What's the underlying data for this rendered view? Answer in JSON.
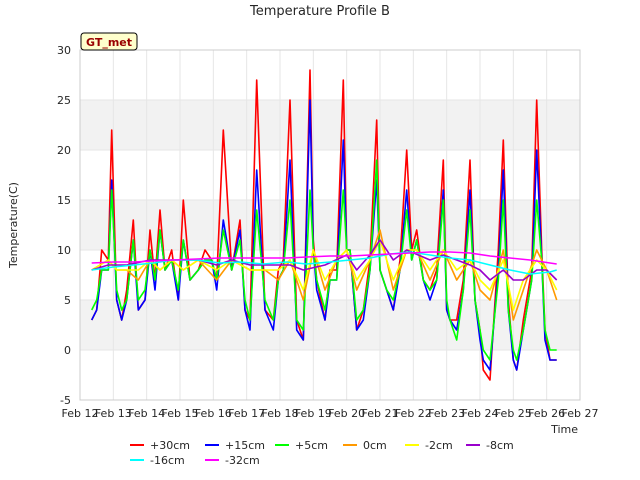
{
  "chart_data": {
    "type": "line",
    "title": "Temperature Profile B",
    "xlabel": "Time",
    "ylabel": "Temperature(C)",
    "annotation": "GT_met",
    "xlim": [
      12,
      27
    ],
    "ylim": [
      -5,
      30
    ],
    "x_ticks": [
      12,
      13,
      14,
      15,
      16,
      17,
      18,
      19,
      20,
      21,
      22,
      23,
      24,
      25,
      26,
      27
    ],
    "x_tick_labels": [
      "Feb 12",
      "Feb 13",
      "Feb 14",
      "Feb 15",
      "Feb 16",
      "Feb 17",
      "Feb 18",
      "Feb 19",
      "Feb 20",
      "Feb 21",
      "Feb 22",
      "Feb 23",
      "Feb 24",
      "Feb 25",
      "Feb 26",
      "Feb 27"
    ],
    "y_ticks": [
      -5,
      0,
      5,
      10,
      15,
      20,
      25,
      30
    ],
    "grid": true,
    "legend_placement": "bottom",
    "series": [
      {
        "name": "+30cm",
        "color": "#ff0000",
        "x": [
          12.35,
          12.5,
          12.65,
          12.85,
          12.95,
          13.1,
          13.25,
          13.4,
          13.6,
          13.75,
          13.95,
          14.1,
          14.25,
          14.4,
          14.55,
          14.75,
          14.95,
          15.1,
          15.3,
          15.55,
          15.75,
          15.95,
          16.1,
          16.3,
          16.55,
          16.8,
          16.95,
          17.1,
          17.3,
          17.55,
          17.8,
          17.95,
          18.1,
          18.3,
          18.5,
          18.7,
          18.9,
          19.0,
          19.1,
          19.35,
          19.5,
          19.7,
          19.9,
          20.0,
          20.1,
          20.3,
          20.5,
          20.7,
          20.9,
          21.0,
          21.2,
          21.4,
          21.6,
          21.8,
          21.95,
          22.1,
          22.3,
          22.5,
          22.7,
          22.9,
          23.0,
          23.1,
          23.3,
          23.5,
          23.7,
          23.85,
          24.0,
          24.1,
          24.3,
          24.55,
          24.7,
          24.85,
          25.0,
          25.1,
          25.3,
          25.55,
          25.7,
          25.85,
          25.95,
          26.1,
          26.3
        ],
        "y": [
          3,
          4,
          10,
          9,
          22,
          5,
          3,
          6,
          13,
          4,
          5,
          12,
          7,
          14,
          8,
          10,
          5,
          15,
          7,
          8,
          10,
          9,
          7,
          22,
          8,
          13,
          4,
          3,
          27,
          4,
          3,
          8,
          9,
          25,
          3,
          1,
          28,
          11,
          7,
          3,
          8,
          8,
          27,
          10,
          10,
          2,
          4,
          9,
          23,
          8,
          6,
          4,
          9,
          20,
          10,
          12,
          7,
          6,
          8,
          19,
          4,
          3,
          3,
          7,
          19,
          5,
          2,
          -2,
          -3,
          10,
          21,
          5,
          -1,
          -2,
          3,
          8,
          25,
          10,
          2,
          -1,
          -1
        ]
      },
      {
        "name": "+15cm",
        "color": "#0000ff",
        "x": [
          12.35,
          12.5,
          12.65,
          12.85,
          12.95,
          13.1,
          13.25,
          13.4,
          13.6,
          13.75,
          13.95,
          14.1,
          14.25,
          14.4,
          14.55,
          14.75,
          14.95,
          15.1,
          15.3,
          15.55,
          15.75,
          15.95,
          16.1,
          16.3,
          16.55,
          16.8,
          16.95,
          17.1,
          17.3,
          17.55,
          17.8,
          17.95,
          18.1,
          18.3,
          18.5,
          18.7,
          18.9,
          19.0,
          19.1,
          19.35,
          19.5,
          19.7,
          19.9,
          20.0,
          20.1,
          20.3,
          20.5,
          20.7,
          20.9,
          21.0,
          21.2,
          21.4,
          21.6,
          21.8,
          21.95,
          22.1,
          22.3,
          22.5,
          22.7,
          22.9,
          23.0,
          23.1,
          23.3,
          23.5,
          23.7,
          23.85,
          24.0,
          24.1,
          24.3,
          24.55,
          24.7,
          24.85,
          25.0,
          25.1,
          25.3,
          25.55,
          25.7,
          25.85,
          25.95,
          26.1,
          26.3
        ],
        "y": [
          3,
          4,
          8,
          8,
          17,
          5,
          3,
          5,
          11,
          4,
          5,
          10,
          6,
          12,
          8,
          9,
          5,
          11,
          7,
          8,
          9,
          9,
          6,
          13,
          8,
          12,
          4,
          2,
          18,
          4,
          2,
          7,
          8,
          19,
          2,
          1,
          25,
          10,
          6,
          3,
          7,
          7,
          21,
          10,
          10,
          2,
          3,
          8,
          17,
          8,
          6,
          4,
          8,
          16,
          9,
          11,
          7,
          5,
          7,
          16,
          4,
          3,
          2,
          6,
          16,
          5,
          1,
          -1,
          -2,
          8,
          18,
          4,
          -1,
          -2,
          2,
          7,
          20,
          9,
          1,
          -1,
          -1
        ]
      },
      {
        "name": "+5cm",
        "color": "#00ff00",
        "x": [
          12.35,
          12.5,
          12.65,
          12.85,
          12.95,
          13.1,
          13.25,
          13.4,
          13.6,
          13.75,
          13.95,
          14.1,
          14.25,
          14.4,
          14.55,
          14.75,
          14.95,
          15.1,
          15.3,
          15.55,
          15.75,
          15.95,
          16.1,
          16.3,
          16.55,
          16.8,
          16.95,
          17.1,
          17.3,
          17.55,
          17.8,
          17.95,
          18.1,
          18.3,
          18.5,
          18.7,
          18.9,
          19.0,
          19.1,
          19.35,
          19.5,
          19.7,
          19.9,
          20.0,
          20.1,
          20.3,
          20.5,
          20.7,
          20.9,
          21.0,
          21.2,
          21.4,
          21.6,
          21.8,
          21.95,
          22.1,
          22.3,
          22.5,
          22.7,
          22.9,
          23.0,
          23.1,
          23.3,
          23.5,
          23.7,
          23.85,
          24.0,
          24.1,
          24.3,
          24.55,
          24.7,
          24.85,
          25.0,
          25.1,
          25.3,
          25.55,
          25.7,
          25.85,
          25.95,
          26.1,
          26.3
        ],
        "y": [
          4,
          5,
          8,
          8,
          16,
          6,
          4,
          5,
          11,
          5,
          6,
          10,
          7,
          12,
          8,
          9,
          6,
          11,
          7,
          8,
          9,
          9,
          7,
          12,
          8,
          11,
          5,
          3,
          14,
          5,
          3,
          7,
          8,
          15,
          3,
          2,
          16,
          10,
          7,
          4,
          7,
          7,
          16,
          10,
          10,
          3,
          4,
          8,
          19,
          8,
          6,
          5,
          8,
          14,
          9,
          11,
          7,
          6,
          7,
          15,
          5,
          3,
          1,
          6,
          14,
          5,
          2,
          0,
          -1,
          7,
          15,
          4,
          0,
          -1,
          2,
          7,
          15,
          9,
          2,
          0,
          0
        ]
      },
      {
        "name": "0cm",
        "color": "#ff9900",
        "x": [
          12.35,
          12.85,
          13.1,
          13.4,
          13.75,
          14.1,
          14.4,
          14.75,
          15.1,
          15.55,
          16.1,
          16.55,
          17.1,
          17.55,
          17.95,
          18.3,
          18.7,
          19.0,
          19.35,
          19.7,
          20.0,
          20.3,
          20.7,
          21.0,
          21.4,
          21.8,
          22.1,
          22.5,
          22.9,
          23.3,
          23.7,
          24.0,
          24.3,
          24.7,
          25.0,
          25.3,
          25.7,
          26.0,
          26.3
        ],
        "y": [
          8,
          9,
          8,
          8,
          7,
          9,
          8,
          9,
          8,
          9,
          7,
          9,
          8,
          8,
          7,
          9,
          5,
          10,
          6,
          9,
          10,
          6,
          9,
          12,
          6,
          10,
          10,
          7,
          10,
          7,
          9,
          6,
          5,
          10,
          3,
          6,
          10,
          8,
          5
        ]
      },
      {
        "name": "-2cm",
        "color": "#ffff00",
        "x": [
          12.35,
          12.85,
          13.1,
          13.4,
          13.75,
          14.1,
          14.4,
          14.75,
          15.1,
          15.55,
          16.1,
          16.55,
          17.1,
          17.55,
          17.95,
          18.3,
          18.7,
          19.0,
          19.35,
          19.7,
          20.0,
          20.3,
          20.7,
          21.0,
          21.4,
          21.8,
          22.1,
          22.5,
          22.9,
          23.3,
          23.7,
          24.0,
          24.3,
          24.7,
          25.0,
          25.3,
          25.7,
          26.0,
          26.3
        ],
        "y": [
          8,
          9,
          8,
          8,
          8,
          9,
          8,
          9,
          8,
          9,
          8,
          9,
          8,
          8,
          8,
          9,
          6,
          10,
          7,
          9,
          10,
          7,
          9,
          11,
          7,
          10,
          10,
          8,
          10,
          8,
          9,
          7,
          6,
          9,
          4,
          7,
          9,
          8,
          6
        ]
      },
      {
        "name": "-8cm",
        "color": "#9900cc",
        "x": [
          12.35,
          12.85,
          13.4,
          14.1,
          14.75,
          15.55,
          16.1,
          16.55,
          17.1,
          17.55,
          18.3,
          18.7,
          19.35,
          20.0,
          20.3,
          20.7,
          21.0,
          21.4,
          21.8,
          22.5,
          22.9,
          23.3,
          23.7,
          24.0,
          24.3,
          24.7,
          25.0,
          25.3,
          25.7,
          26.0,
          26.3
        ],
        "y": [
          8,
          8.5,
          8.5,
          9,
          9,
          9,
          8.5,
          9,
          8.5,
          8.5,
          8.5,
          8,
          8.5,
          9.5,
          8,
          9.5,
          11,
          9,
          10,
          9,
          9.5,
          9,
          8.5,
          8,
          7,
          8,
          7,
          7,
          8,
          8,
          7
        ]
      },
      {
        "name": "-16cm",
        "color": "#00ffff",
        "x": [
          12.35,
          13.0,
          13.6,
          14.2,
          14.8,
          15.5,
          16.2,
          16.8,
          17.5,
          18.2,
          18.8,
          19.5,
          20.1,
          20.7,
          21.3,
          21.9,
          22.5,
          23.1,
          23.7,
          24.3,
          24.9,
          25.5,
          26.1,
          26.3
        ],
        "y": [
          8,
          8.3,
          8.5,
          8.7,
          9,
          9,
          8.7,
          8.8,
          8.6,
          8.8,
          8.6,
          8.8,
          9,
          9.2,
          9.6,
          9.8,
          9.5,
          9.2,
          9,
          8.5,
          8,
          7.6,
          7.8,
          8
        ]
      },
      {
        "name": "-32cm",
        "color": "#ff00ff",
        "x": [
          12.35,
          13.0,
          13.6,
          14.2,
          14.8,
          15.5,
          16.2,
          16.8,
          17.5,
          18.2,
          18.8,
          19.5,
          20.1,
          20.7,
          21.3,
          21.9,
          22.5,
          23.1,
          23.7,
          24.3,
          24.9,
          25.5,
          26.1,
          26.3
        ],
        "y": [
          8.7,
          8.8,
          8.8,
          8.9,
          9,
          9.1,
          9.2,
          9.2,
          9.2,
          9.2,
          9.3,
          9.4,
          9.4,
          9.5,
          9.6,
          9.7,
          9.8,
          9.8,
          9.7,
          9.4,
          9.2,
          9,
          8.7,
          8.6
        ]
      }
    ]
  }
}
